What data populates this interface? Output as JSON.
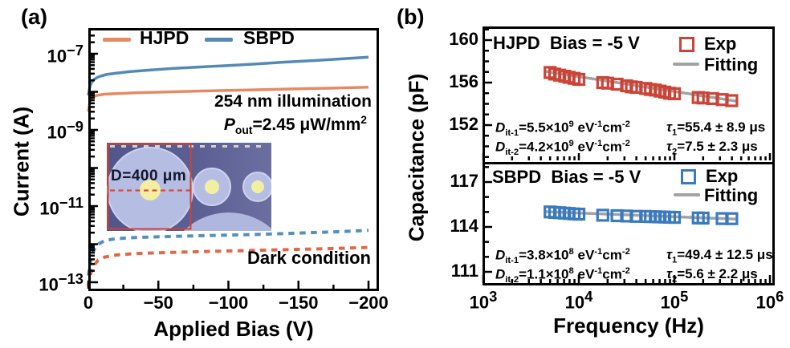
{
  "panel_a": {
    "label": "(a)",
    "xlabel": "Applied Bias (V)",
    "ylabel": "Current (A)",
    "legend": [
      {
        "label": "HJPD",
        "color": "#E78963"
      },
      {
        "label": "SBPD",
        "color": "#538AB5"
      }
    ],
    "annotations": {
      "illumination": "254 nm illumination",
      "power": [
        {
          "t": "P",
          "s": "it"
        },
        {
          "t": "out",
          "s": "sub"
        },
        {
          "t": "=2.45 μW/mm"
        },
        {
          "t": "2",
          "s": "sup"
        }
      ],
      "dark": "Dark condition"
    },
    "inset": {
      "diameter_label": "D=400 μm"
    }
  },
  "panel_b": {
    "label": "(b)",
    "xlabel": "Frequency (Hz)",
    "ylabel": "Capacitance (pF)",
    "x_tick_labels": [
      {
        "base": "10",
        "sup": "3"
      },
      {
        "base": "10",
        "sup": "4"
      },
      {
        "base": "10",
        "sup": "5"
      },
      {
        "base": "10",
        "sup": "6"
      }
    ],
    "hjpd": {
      "title": "HJPD  Bias = -5 V",
      "legend": {
        "exp": "Exp",
        "fit": "Fitting"
      },
      "colors": {
        "exp": "#CC4437",
        "fit": "#A2A2A2"
      },
      "ann": [
        {
          "left": [
            {
              "t": "D",
              "s": "it"
            },
            {
              "t": "it-1",
              "s": "sub"
            },
            {
              "t": "=5.5×10"
            },
            {
              "t": "9",
              "s": "sup"
            },
            {
              "t": " eV"
            },
            {
              "t": "-1",
              "s": "sup"
            },
            {
              "t": "cm"
            },
            {
              "t": "-2",
              "s": "sup"
            }
          ],
          "right": [
            {
              "t": "τ",
              "s": "it"
            },
            {
              "t": "1",
              "s": "sub"
            },
            {
              "t": "=55.4 ± 8.9 μs"
            }
          ]
        },
        {
          "left": [
            {
              "t": "D",
              "s": "it"
            },
            {
              "t": "it-2",
              "s": "sub"
            },
            {
              "t": "=4.2×10"
            },
            {
              "t": "9",
              "s": "sup"
            },
            {
              "t": " eV"
            },
            {
              "t": "-1",
              "s": "sup"
            },
            {
              "t": "cm"
            },
            {
              "t": "-2",
              "s": "sup"
            }
          ],
          "right": [
            {
              "t": "τ",
              "s": "it"
            },
            {
              "t": "2",
              "s": "sub"
            },
            {
              "t": "=7.5 ± 2.3 μs"
            }
          ]
        }
      ]
    },
    "sbpd": {
      "title": "SBPD  Bias = -5 V",
      "legend": {
        "exp": "Exp",
        "fit": "Fitting"
      },
      "colors": {
        "exp": "#3A7ABF",
        "fit": "#A2A2A2"
      },
      "ann": [
        {
          "left": [
            {
              "t": "D",
              "s": "it"
            },
            {
              "t": "it-1",
              "s": "sub"
            },
            {
              "t": "=3.8×10"
            },
            {
              "t": "8",
              "s": "sup"
            },
            {
              "t": " eV"
            },
            {
              "t": "-1",
              "s": "sup"
            },
            {
              "t": "cm"
            },
            {
              "t": "-2",
              "s": "sup"
            }
          ],
          "right": [
            {
              "t": "τ",
              "s": "it"
            },
            {
              "t": "1",
              "s": "sub"
            },
            {
              "t": "=49.4 ± 12.5 μs"
            }
          ]
        },
        {
          "left": [
            {
              "t": "D",
              "s": "it"
            },
            {
              "t": "it-2",
              "s": "sub"
            },
            {
              "t": "=1.1×10"
            },
            {
              "t": "8",
              "s": "sup"
            },
            {
              "t": " eV"
            },
            {
              "t": "-1",
              "s": "sup"
            },
            {
              "t": "cm"
            },
            {
              "t": "-2",
              "s": "sup"
            }
          ],
          "right": [
            {
              "t": "τ",
              "s": "it"
            },
            {
              "t": "2",
              "s": "sub"
            },
            {
              "t": "=5.6 ± 2.2 μs"
            }
          ]
        }
      ]
    }
  },
  "chart_data": [
    {
      "id": "panel-a-iv",
      "type": "line",
      "xlabel": "Applied Bias (V)",
      "ylabel": "Current (A)",
      "x_axis": "bias volts, 0 to -200",
      "y_axis": "current amps, log scale 1e-13 to ~5e-7",
      "xlim": [
        0,
        -207
      ],
      "ylog_lim": [
        -13.2,
        -6.35
      ],
      "x_major_ticks": [
        0,
        -50,
        -100,
        -150,
        -200
      ],
      "x_minor_ticks": [
        -25,
        -75,
        -125,
        -175
      ],
      "x_tick_labels": [
        "0",
        "−50",
        "−100",
        "−150",
        "−200"
      ],
      "y_decade_ticks": [
        -7,
        -8,
        -9,
        -10,
        -11,
        -12,
        -13
      ],
      "y_tick_labels": [
        {
          "e": -7,
          "base": "10",
          "sup": "−7"
        },
        {
          "e": -9,
          "base": "10",
          "sup": "−9"
        },
        {
          "e": -11,
          "base": "10",
          "sup": "−11"
        },
        {
          "e": -13,
          "base": "10",
          "sup": "−13"
        }
      ],
      "series": [
        {
          "name": "HJPD illuminated",
          "color": "#E78963",
          "style": "solid",
          "points": [
            [
              0,
              3e-09
            ],
            [
              -1,
              5e-09
            ],
            [
              -2,
              6.5e-09
            ],
            [
              -4,
              7.6e-09
            ],
            [
              -7,
              8.2e-09
            ],
            [
              -12,
              8.7e-09
            ],
            [
              -20,
              9e-09
            ],
            [
              -35,
              9.5e-09
            ],
            [
              -60,
              1e-08
            ],
            [
              -90,
              1.07e-08
            ],
            [
              -120,
              1.13e-08
            ],
            [
              -150,
              1.2e-08
            ],
            [
              -175,
              1.25e-08
            ],
            [
              -200,
              1.32e-08
            ]
          ]
        },
        {
          "name": "SBPD illuminated",
          "color": "#538AB5",
          "style": "solid",
          "points": [
            [
              0,
              8e-09
            ],
            [
              -1,
              1.3e-08
            ],
            [
              -2,
              1.7e-08
            ],
            [
              -4,
              2.1e-08
            ],
            [
              -6,
              2.35e-08
            ],
            [
              -9,
              2.6e-08
            ],
            [
              -13,
              2.85e-08
            ],
            [
              -20,
              3.1e-08
            ],
            [
              -30,
              3.4e-08
            ],
            [
              -45,
              3.75e-08
            ],
            [
              -60,
              4.1e-08
            ],
            [
              -80,
              4.5e-08
            ],
            [
              -100,
              4.9e-08
            ],
            [
              -120,
              5.4e-08
            ],
            [
              -140,
              6e-08
            ],
            [
              -160,
              6.6e-08
            ],
            [
              -180,
              7.3e-08
            ],
            [
              -200,
              8.1e-08
            ]
          ]
        },
        {
          "name": "HJPD dark",
          "color": "#E06849",
          "style": "dashed",
          "points": [
            [
              0,
              8e-14
            ],
            [
              -2,
              1.8e-13
            ],
            [
              -4,
              2.8e-13
            ],
            [
              -7,
              3.8e-13
            ],
            [
              -12,
              4.6e-13
            ],
            [
              -20,
              5.2e-13
            ],
            [
              -35,
              5.7e-13
            ],
            [
              -60,
              6.1e-13
            ],
            [
              -90,
              6.5e-13
            ],
            [
              -120,
              6.9e-13
            ],
            [
              -150,
              7.3e-13
            ],
            [
              -175,
              7.7e-13
            ],
            [
              -200,
              8.2e-13
            ]
          ]
        },
        {
          "name": "SBPD dark",
          "color": "#5590BA",
          "style": "dashed",
          "points": [
            [
              0,
              1.5e-13
            ],
            [
              -2,
              4e-13
            ],
            [
              -4,
              7e-13
            ],
            [
              -7,
              1e-12
            ],
            [
              -12,
              1.25e-12
            ],
            [
              -20,
              1.4e-12
            ],
            [
              -35,
              1.5e-12
            ],
            [
              -60,
              1.6e-12
            ],
            [
              -90,
              1.7e-12
            ],
            [
              -120,
              1.8e-12
            ],
            [
              -150,
              1.95e-12
            ],
            [
              -175,
              2.1e-12
            ],
            [
              -200,
              2.3e-12
            ]
          ]
        }
      ]
    },
    {
      "id": "panel-b-hjpd",
      "type": "scatter",
      "title": "HJPD  Bias = -5 V",
      "xlog_lim": [
        3,
        6.05
      ],
      "ylim": [
        148.5,
        161.3
      ],
      "x_major_decades": [
        3,
        4,
        5,
        6
      ],
      "y_major_ticks": [
        160,
        156,
        152
      ],
      "y_minor_ticks": [
        149,
        150,
        151,
        153,
        154,
        155,
        157,
        158,
        159,
        161
      ],
      "exp_points": [
        [
          5000,
          156.95
        ],
        [
          5600,
          156.8
        ],
        [
          6300,
          156.7
        ],
        [
          7100,
          156.6
        ],
        [
          7900,
          156.5
        ],
        [
          8900,
          156.4
        ],
        [
          10000,
          156.3
        ],
        [
          17800,
          156.0
        ],
        [
          20000,
          155.95
        ],
        [
          25100,
          155.85
        ],
        [
          31600,
          155.7
        ],
        [
          35500,
          155.6
        ],
        [
          39800,
          155.55
        ],
        [
          50100,
          155.45
        ],
        [
          56200,
          155.35
        ],
        [
          63100,
          155.3
        ],
        [
          70800,
          155.2
        ],
        [
          79400,
          155.1
        ],
        [
          89100,
          155.0
        ],
        [
          100000,
          154.95
        ],
        [
          177800,
          154.6
        ],
        [
          199500,
          154.55
        ],
        [
          251200,
          154.5
        ],
        [
          316200,
          154.4
        ],
        [
          398100,
          154.3
        ]
      ],
      "fit_points": [
        [
          4500,
          157.05
        ],
        [
          450000,
          154.25
        ]
      ]
    },
    {
      "id": "panel-b-sbpd",
      "type": "scatter",
      "title": "SBPD  Bias = -5 V",
      "xlog_lim": [
        3,
        6.05
      ],
      "ylim": [
        110.1,
        118.3
      ],
      "x_major_decades": [
        3,
        4,
        5,
        6
      ],
      "y_major_ticks": [
        117,
        114,
        111
      ],
      "y_minor_ticks": [
        110,
        112,
        113,
        115,
        116,
        118
      ],
      "exp_points": [
        [
          5000,
          115.0
        ],
        [
          5600,
          114.97
        ],
        [
          6300,
          114.95
        ],
        [
          7100,
          114.92
        ],
        [
          7900,
          114.9
        ],
        [
          8900,
          114.87
        ],
        [
          10000,
          114.85
        ],
        [
          17800,
          114.78
        ],
        [
          25100,
          114.75
        ],
        [
          31600,
          114.73
        ],
        [
          39800,
          114.71
        ],
        [
          50100,
          114.7
        ],
        [
          56200,
          114.69
        ],
        [
          63100,
          114.68
        ],
        [
          70800,
          114.67
        ],
        [
          79400,
          114.66
        ],
        [
          89100,
          114.65
        ],
        [
          100000,
          114.64
        ],
        [
          177800,
          114.6
        ],
        [
          199500,
          114.59
        ],
        [
          316200,
          114.56
        ],
        [
          398100,
          114.55
        ]
      ],
      "fit_points": [
        [
          4500,
          115.02
        ],
        [
          450000,
          114.52
        ]
      ]
    }
  ]
}
